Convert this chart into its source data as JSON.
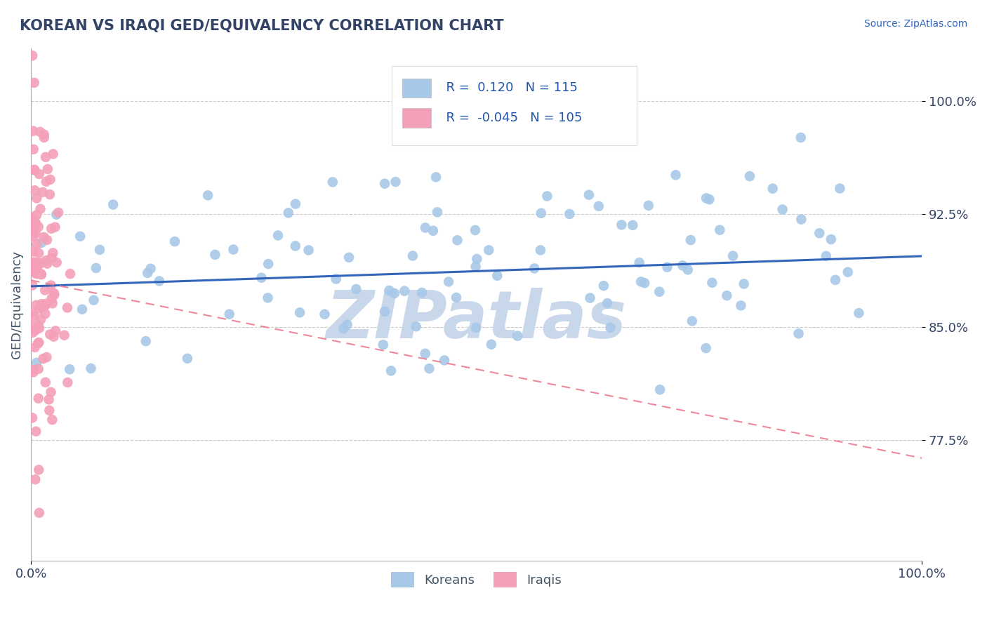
{
  "title": "KOREAN VS IRAQI GED/EQUIVALENCY CORRELATION CHART",
  "source": "Source: ZipAtlas.com",
  "ylabel": "GED/Equivalency",
  "xlim": [
    0.0,
    1.0
  ],
  "ylim": [
    0.695,
    1.035
  ],
  "yticks": [
    0.775,
    0.85,
    0.925,
    1.0
  ],
  "ytick_labels": [
    "77.5%",
    "85.0%",
    "92.5%",
    "100.0%"
  ],
  "korean_R": 0.12,
  "korean_N": 115,
  "iraqi_R": -0.045,
  "iraqi_N": 105,
  "korean_color": "#a8c8e8",
  "iraqi_color": "#f4a0b8",
  "korean_trend_color": "#3366bb",
  "iraqi_trend_color": "#ee8899",
  "watermark": "ZIPatlas",
  "watermark_color": "#c8d8ea",
  "legend_R_color": "#2255aa",
  "background_color": "#ffffff",
  "grid_color": "#cccccc",
  "title_color": "#334466",
  "axis_label_color": "#445566",
  "tick_color": "#334466",
  "korean_seed": 7,
  "iraqi_seed": 13,
  "korean_trend_start_y": 0.877,
  "korean_trend_end_y": 0.897,
  "iraqi_trend_start_y": 0.881,
  "iraqi_trend_end_y": 0.763
}
